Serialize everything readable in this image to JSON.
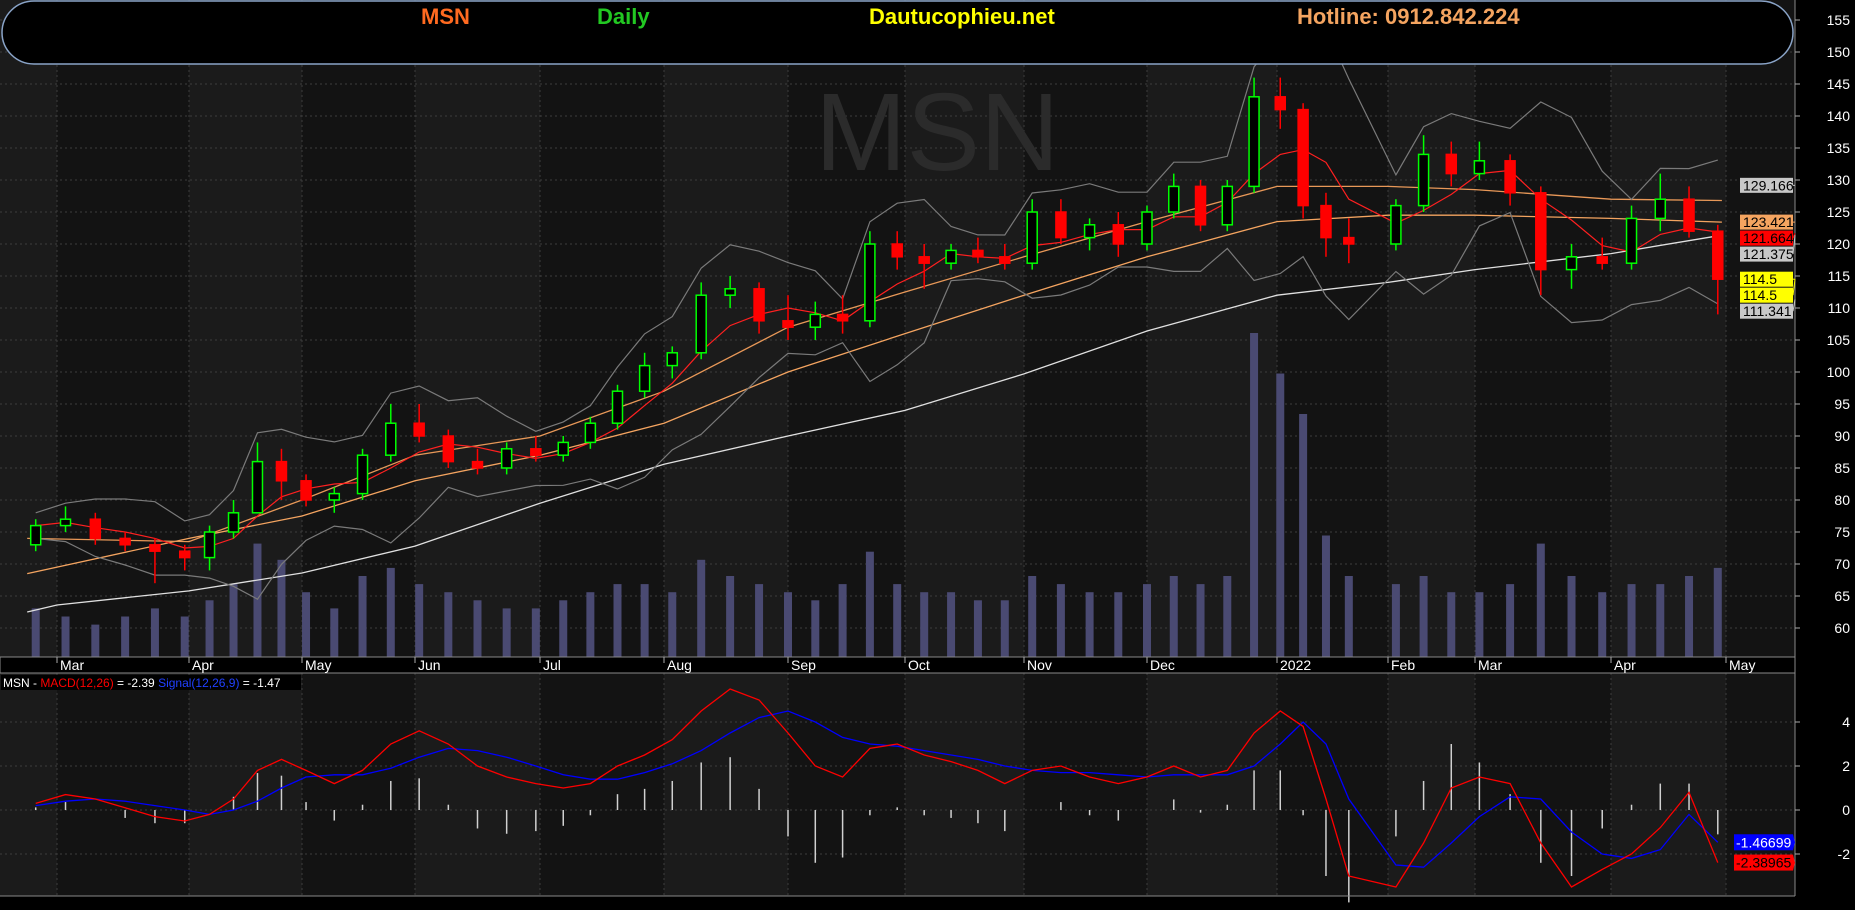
{
  "header": {
    "symbol": "MSN",
    "period": "Daily",
    "site": "Dautucophieu.net",
    "hotline": "Hotline: 0912.842.224",
    "colors": {
      "symbol": "#ff6a20",
      "period": "#22c822",
      "site": "#ffff00",
      "hotline": "#f4a460",
      "border": "#8aa4c8"
    }
  },
  "watermark": "MSN",
  "price_axis": {
    "ticks": [
      "155",
      "150",
      "145",
      "140",
      "135",
      "130",
      "125",
      "120",
      "115",
      "110",
      "105",
      "100",
      "95",
      "90",
      "85",
      "80",
      "75",
      "70",
      "65",
      "60"
    ]
  },
  "price_labels": [
    {
      "text": "129.166",
      "bg": "#c8c8c8",
      "fg": "#000000",
      "value": 129.166
    },
    {
      "text": "123.421",
      "bg": "#f4a460",
      "fg": "#000000",
      "value": 123.421
    },
    {
      "text": "121.664",
      "bg": "#ff0000",
      "fg": "#000000",
      "value": 121.664
    },
    {
      "text": "121.375",
      "bg": "#c8c8c8",
      "fg": "#000000",
      "value": 121.375
    },
    {
      "text": "114.5",
      "bg": "#ffff00",
      "fg": "#000000",
      "value": 114.5
    },
    {
      "text": "114.5",
      "bg": "#ffff00",
      "fg": "#000000",
      "value": 114.5
    },
    {
      "text": "111.341",
      "bg": "#c8c8c8",
      "fg": "#000000",
      "value": 111.341
    }
  ],
  "months": [
    "Mar",
    "Apr",
    "May",
    "Jun",
    "Jul",
    "Aug",
    "Sep",
    "Oct",
    "Nov",
    "Dec",
    "2022",
    "Feb",
    "Mar",
    "Apr",
    "May"
  ],
  "macd_axis": {
    "ticks": [
      "4",
      "2",
      "0",
      "-2"
    ]
  },
  "macd_legend": {
    "symbol": "MSN - ",
    "macd_name": "MACD(12,26)",
    "macd_value": " = -2.39 ",
    "signal_name": "Signal(12,26,9)",
    "signal_value": " = -1.47"
  },
  "macd_labels": [
    {
      "text": "-1.46699",
      "bg": "#0000ff",
      "fg": "#ffffff",
      "value": -1.46699
    },
    {
      "text": "-2.38965",
      "bg": "#ff0000",
      "fg": "#000000",
      "value": -2.38965
    }
  ],
  "chart_data": [
    {
      "type": "candlestick",
      "title": "MSN Daily",
      "ylim": [
        56,
        157
      ],
      "grid": true,
      "colors": {
        "up": "#00ff00",
        "down": "#ff0000",
        "volume": "#4a4a72",
        "ma20": "#ff2020",
        "bollinger": "#7a7a7a"
      },
      "candle_fields": [
        "date",
        "open",
        "high",
        "low",
        "close",
        "volume"
      ],
      "candles": [
        [
          "2021-02-22",
          73,
          77,
          72,
          76,
          6
        ],
        [
          "2021-03-01",
          76,
          79,
          75,
          77,
          5
        ],
        [
          "2021-03-08",
          77,
          78,
          73,
          74,
          4
        ],
        [
          "2021-03-15",
          74,
          75,
          72,
          73,
          5
        ],
        [
          "2021-03-22",
          73,
          74,
          67,
          72,
          6
        ],
        [
          "2021-03-29",
          72,
          73,
          69,
          71,
          5
        ],
        [
          "2021-04-05",
          71,
          76,
          69,
          75,
          7
        ],
        [
          "2021-04-12",
          75,
          80,
          74,
          78,
          9
        ],
        [
          "2021-04-19",
          78,
          89,
          78,
          86,
          14
        ],
        [
          "2021-04-26",
          86,
          88,
          80,
          83,
          12
        ],
        [
          "2021-05-03",
          83,
          84,
          79,
          80,
          8
        ],
        [
          "2021-05-10",
          80,
          82,
          78,
          81,
          6
        ],
        [
          "2021-05-17",
          81,
          88,
          80,
          87,
          10
        ],
        [
          "2021-05-24",
          87,
          95,
          86,
          92,
          11
        ],
        [
          "2021-05-31",
          92,
          95,
          89,
          90,
          9
        ],
        [
          "2021-06-07",
          90,
          91,
          85,
          86,
          8
        ],
        [
          "2021-06-14",
          86,
          88,
          84,
          85,
          7
        ],
        [
          "2021-06-21",
          85,
          89,
          84,
          88,
          6
        ],
        [
          "2021-06-28",
          88,
          90,
          86,
          87,
          6
        ],
        [
          "2021-07-05",
          87,
          90,
          86,
          89,
          7
        ],
        [
          "2021-07-12",
          89,
          93,
          88,
          92,
          8
        ],
        [
          "2021-07-19",
          92,
          98,
          91,
          97,
          9
        ],
        [
          "2021-07-26",
          97,
          103,
          96,
          101,
          9
        ],
        [
          "2021-08-02",
          101,
          104,
          99,
          103,
          8
        ],
        [
          "2021-08-09",
          103,
          114,
          102,
          112,
          12
        ],
        [
          "2021-08-16",
          112,
          115,
          110,
          113,
          10
        ],
        [
          "2021-08-23",
          113,
          114,
          106,
          108,
          9
        ],
        [
          "2021-08-30",
          108,
          112,
          105,
          107,
          8
        ],
        [
          "2021-09-06",
          107,
          111,
          105,
          109,
          7
        ],
        [
          "2021-09-13",
          109,
          112,
          106,
          108,
          9
        ],
        [
          "2021-09-20",
          108,
          122,
          107,
          120,
          13
        ],
        [
          "2021-09-27",
          120,
          122,
          116,
          118,
          9
        ],
        [
          "2021-10-04",
          118,
          120,
          113,
          117,
          8
        ],
        [
          "2021-10-11",
          117,
          120,
          116,
          119,
          8
        ],
        [
          "2021-10-18",
          119,
          121,
          117,
          118,
          7
        ],
        [
          "2021-10-25",
          118,
          120,
          116,
          117,
          7
        ],
        [
          "2021-11-01",
          117,
          127,
          116,
          125,
          10
        ],
        [
          "2021-11-08",
          125,
          127,
          120,
          121,
          9
        ],
        [
          "2021-11-15",
          121,
          124,
          119,
          123,
          8
        ],
        [
          "2021-11-22",
          123,
          125,
          118,
          120,
          8
        ],
        [
          "2021-11-29",
          120,
          126,
          119,
          125,
          9
        ],
        [
          "2021-12-06",
          125,
          131,
          124,
          129,
          10
        ],
        [
          "2021-12-13",
          129,
          130,
          122,
          123,
          9
        ],
        [
          "2021-12-20",
          123,
          130,
          122,
          129,
          10
        ],
        [
          "2021-12-27",
          129,
          146,
          128,
          143,
          40
        ],
        [
          "2022-01-03",
          143,
          146,
          138,
          141,
          35
        ],
        [
          "2022-01-10",
          141,
          142,
          124,
          126,
          30
        ],
        [
          "2022-01-17",
          126,
          128,
          118,
          121,
          15
        ],
        [
          "2022-01-24",
          121,
          124,
          117,
          120,
          10
        ],
        [
          "2022-02-07",
          120,
          127,
          119,
          126,
          9
        ],
        [
          "2022-02-14",
          126,
          137,
          125,
          134,
          10
        ],
        [
          "2022-02-21",
          134,
          136,
          129,
          131,
          8
        ],
        [
          "2022-02-28",
          131,
          136,
          130,
          133,
          8
        ],
        [
          "2022-03-07",
          133,
          134,
          126,
          128,
          9
        ],
        [
          "2022-03-14",
          128,
          129,
          112,
          116,
          14
        ],
        [
          "2022-03-21",
          116,
          120,
          113,
          118,
          10
        ],
        [
          "2022-03-28",
          118,
          121,
          116,
          117,
          8
        ],
        [
          "2022-04-04",
          117,
          126,
          116,
          124,
          9
        ],
        [
          "2022-04-11",
          124,
          131,
          122,
          127,
          9
        ],
        [
          "2022-04-18",
          127,
          129,
          121,
          122,
          10
        ],
        [
          "2022-04-25",
          122,
          123,
          109,
          114.5,
          11
        ]
      ],
      "moving_averages": [
        {
          "color": "#e0e0e0",
          "points": [
            [
              "2021-02-22",
              62.5
            ],
            [
              "2021-03-01",
              63.6
            ],
            [
              "2021-04-01",
              65.8
            ],
            [
              "2021-05-04",
              68.6
            ],
            [
              "2021-06-01",
              72.8
            ],
            [
              "2021-07-01",
              79.5
            ],
            [
              "2021-08-02",
              85.6
            ],
            [
              "2021-09-01",
              90
            ],
            [
              "2021-10-01",
              94
            ],
            [
              "2021-11-01",
              99.7
            ],
            [
              "2021-12-01",
              106.4
            ],
            [
              "2022-01-04",
              112
            ],
            [
              "2022-02-07",
              114
            ],
            [
              "2022-03-01",
              116
            ],
            [
              "2022-04-01",
              118.5
            ],
            [
              "2022-04-28",
              121.375
            ]
          ]
        },
        {
          "color": "#f4a460",
          "points": [
            [
              "2021-02-22",
              68.5
            ],
            [
              "2021-04-01",
              74
            ],
            [
              "2021-05-04",
              77.5
            ],
            [
              "2021-06-01",
              83
            ],
            [
              "2021-07-01",
              87
            ],
            [
              "2021-08-02",
              92
            ],
            [
              "2021-09-01",
              100
            ],
            [
              "2021-10-01",
              106
            ],
            [
              "2021-11-01",
              112
            ],
            [
              "2021-12-01",
              118
            ],
            [
              "2022-01-04",
              123.5
            ],
            [
              "2022-02-07",
              124.5
            ],
            [
              "2022-03-01",
              124.5
            ],
            [
              "2022-04-01",
              124
            ],
            [
              "2022-04-28",
              123.421
            ]
          ]
        },
        {
          "color": "#e89858",
          "points": [
            [
              "2021-02-22",
              74
            ],
            [
              "2021-04-01",
              73.5
            ],
            [
              "2021-05-04",
              80
            ],
            [
              "2021-06-01",
              87
            ],
            [
              "2021-07-01",
              90
            ],
            [
              "2021-08-02",
              97
            ],
            [
              "2021-09-01",
              107
            ],
            [
              "2021-10-01",
              112.5
            ],
            [
              "2021-11-01",
              118
            ],
            [
              "2021-12-01",
              123.5
            ],
            [
              "2022-01-04",
              129
            ],
            [
              "2022-02-07",
              129
            ],
            [
              "2022-03-01",
              128.5
            ],
            [
              "2022-04-01",
              127
            ],
            [
              "2022-04-28",
              126.8
            ]
          ]
        }
      ]
    },
    {
      "type": "line",
      "title": "MSN - MACD(12,26) = -2.39 Signal(12,26,9) = -1.47",
      "ylim": [
        -4.5,
        6.5
      ],
      "grid": true,
      "colors": {
        "macd": "#ff0000",
        "signal": "#0000ff",
        "histogram": "#d0d0d0"
      },
      "fields": [
        "date",
        "macd",
        "signal"
      ],
      "values": [
        [
          "2021-02-22",
          0.3,
          0.2
        ],
        [
          "2021-03-01",
          0.7,
          0.4
        ],
        [
          "2021-03-08",
          0.5,
          0.5
        ],
        [
          "2021-03-15",
          0.1,
          0.4
        ],
        [
          "2021-03-22",
          -0.3,
          0.2
        ],
        [
          "2021-03-29",
          -0.5,
          0.0
        ],
        [
          "2021-04-05",
          -0.2,
          -0.2
        ],
        [
          "2021-04-12",
          0.5,
          0.0
        ],
        [
          "2021-04-19",
          1.8,
          0.4
        ],
        [
          "2021-04-26",
          2.3,
          1.0
        ],
        [
          "2021-05-03",
          1.8,
          1.5
        ],
        [
          "2021-05-10",
          1.2,
          1.6
        ],
        [
          "2021-05-17",
          1.8,
          1.6
        ],
        [
          "2021-05-24",
          3.0,
          1.9
        ],
        [
          "2021-05-31",
          3.6,
          2.4
        ],
        [
          "2021-06-07",
          3.0,
          2.8
        ],
        [
          "2021-06-14",
          2.0,
          2.7
        ],
        [
          "2021-06-21",
          1.5,
          2.4
        ],
        [
          "2021-06-28",
          1.2,
          2.0
        ],
        [
          "2021-07-05",
          1.0,
          1.6
        ],
        [
          "2021-07-12",
          1.2,
          1.4
        ],
        [
          "2021-07-19",
          2.0,
          1.4
        ],
        [
          "2021-07-26",
          2.5,
          1.7
        ],
        [
          "2021-08-02",
          3.2,
          2.1
        ],
        [
          "2021-08-09",
          4.5,
          2.7
        ],
        [
          "2021-08-16",
          5.5,
          3.5
        ],
        [
          "2021-08-23",
          5.0,
          4.2
        ],
        [
          "2021-08-30",
          3.5,
          4.5
        ],
        [
          "2021-09-06",
          2.0,
          4.0
        ],
        [
          "2021-09-13",
          1.5,
          3.3
        ],
        [
          "2021-09-20",
          2.8,
          3.0
        ],
        [
          "2021-09-27",
          3.0,
          2.9
        ],
        [
          "2021-10-04",
          2.5,
          2.7
        ],
        [
          "2021-10-11",
          2.2,
          2.5
        ],
        [
          "2021-10-18",
          1.8,
          2.3
        ],
        [
          "2021-10-25",
          1.2,
          2.0
        ],
        [
          "2021-11-01",
          1.8,
          1.8
        ],
        [
          "2021-11-08",
          2.0,
          1.7
        ],
        [
          "2021-11-15",
          1.5,
          1.7
        ],
        [
          "2021-11-22",
          1.2,
          1.6
        ],
        [
          "2021-11-29",
          1.5,
          1.5
        ],
        [
          "2021-12-06",
          2.0,
          1.6
        ],
        [
          "2021-12-13",
          1.5,
          1.6
        ],
        [
          "2021-12-20",
          1.8,
          1.6
        ],
        [
          "2021-12-27",
          3.5,
          2.0
        ],
        [
          "2022-01-03",
          4.5,
          3.0
        ],
        [
          "2022-01-10",
          3.8,
          4.0
        ],
        [
          "2022-01-17",
          0.5,
          3.0
        ],
        [
          "2022-01-24",
          -3.0,
          0.5
        ],
        [
          "2022-02-07",
          -3.5,
          -2.5
        ],
        [
          "2022-02-14",
          -1.5,
          -2.6
        ],
        [
          "2022-02-21",
          1.0,
          -1.5
        ],
        [
          "2022-02-28",
          1.5,
          -0.3
        ],
        [
          "2022-03-07",
          1.2,
          0.6
        ],
        [
          "2022-03-14",
          -1.5,
          0.5
        ],
        [
          "2022-03-21",
          -3.5,
          -1.0
        ],
        [
          "2022-03-28",
          -2.7,
          -2.0
        ],
        [
          "2022-04-04",
          -2.0,
          -2.2
        ],
        [
          "2022-04-11",
          -0.8,
          -1.8
        ],
        [
          "2022-04-18",
          0.8,
          -0.2
        ],
        [
          "2022-04-25",
          -2.38965,
          -1.46699
        ]
      ]
    }
  ]
}
